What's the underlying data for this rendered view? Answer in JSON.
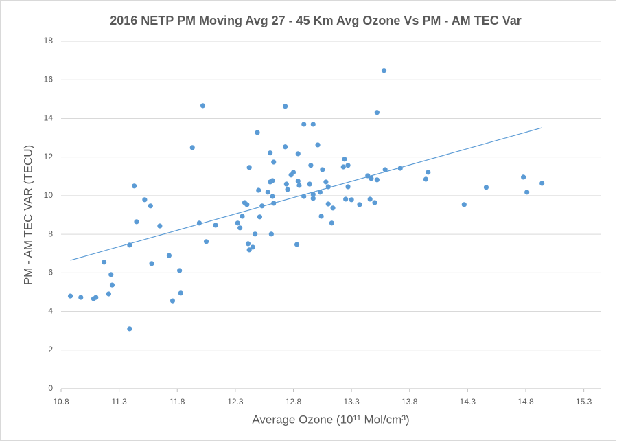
{
  "chart_data": {
    "type": "scatter",
    "title": "2016 NETP PM Moving Avg 27 - 45 Km Avg Ozone Vs PM - AM TEC Var",
    "x_label": "Average Ozone (10¹¹ Mol/cm³)",
    "y_label": "PM - AM TEC VAR (TECU)",
    "xlim": [
      10.8,
      15.45
    ],
    "ylim": [
      0,
      18
    ],
    "xticks": [
      10.8,
      11.3,
      11.8,
      12.3,
      12.8,
      13.3,
      13.8,
      14.3,
      14.8,
      15.3
    ],
    "yticks": [
      0,
      2,
      4,
      6,
      8,
      10,
      12,
      14,
      16,
      18
    ],
    "grid": true,
    "series": [
      {
        "color": "#5b9bd5",
        "x": [
          10.88,
          10.97,
          11.08,
          11.1,
          11.17,
          11.21,
          11.23,
          11.24,
          11.39,
          11.39,
          11.43,
          11.45,
          11.52,
          11.57,
          11.58,
          11.65,
          11.73,
          11.76,
          11.82,
          11.83,
          11.93,
          11.99,
          12.02,
          12.05,
          12.13,
          12.32,
          12.34,
          12.36,
          12.38,
          12.4,
          12.41,
          12.42,
          12.42,
          12.45,
          12.47,
          12.49,
          12.5,
          12.51,
          12.53,
          12.58,
          12.6,
          12.6,
          12.61,
          12.62,
          12.62,
          12.63,
          12.63,
          12.73,
          12.73,
          12.74,
          12.75,
          12.78,
          12.8,
          12.83,
          12.84,
          12.84,
          12.85,
          12.89,
          12.89,
          12.94,
          12.95,
          12.97,
          12.97,
          12.97,
          13.01,
          13.03,
          13.04,
          13.05,
          13.08,
          13.1,
          13.1,
          13.13,
          13.14,
          13.23,
          13.24,
          13.25,
          13.27,
          13.27,
          13.3,
          13.37,
          13.44,
          13.46,
          13.47,
          13.5,
          13.52,
          13.52,
          13.58,
          13.59,
          13.72,
          13.94,
          13.96,
          14.27,
          14.46,
          14.78,
          14.81,
          14.94
        ],
        "values": [
          4.8,
          4.73,
          4.66,
          4.73,
          6.55,
          4.91,
          5.91,
          5.37,
          7.44,
          3.1,
          10.5,
          8.65,
          9.79,
          9.47,
          6.48,
          8.43,
          6.9,
          4.55,
          6.12,
          4.95,
          12.49,
          8.58,
          14.66,
          7.62,
          8.47,
          8.58,
          8.33,
          8.93,
          9.64,
          9.54,
          7.51,
          7.19,
          11.46,
          7.33,
          8.01,
          13.27,
          10.28,
          8.9,
          9.47,
          10.18,
          12.21,
          10.71,
          8.01,
          10.78,
          9.96,
          11.74,
          9.61,
          14.63,
          12.53,
          10.6,
          10.32,
          11.07,
          11.21,
          7.47,
          12.17,
          10.75,
          10.53,
          13.7,
          9.96,
          10.6,
          11.57,
          13.7,
          10.07,
          9.86,
          12.63,
          10.18,
          8.93,
          11.35,
          10.71,
          10.46,
          9.57,
          8.58,
          9.36,
          11.49,
          11.89,
          9.82,
          11.57,
          10.46,
          9.79,
          9.54,
          11.03,
          9.82,
          10.89,
          9.64,
          10.82,
          14.31,
          16.48,
          11.35,
          11.42,
          10.85,
          11.21,
          9.54,
          10.43,
          10.96,
          10.18,
          10.64
        ]
      }
    ],
    "trendline": {
      "color": "#5b9bd5",
      "x": [
        10.88,
        14.94
      ],
      "values": [
        6.65,
        13.52
      ]
    }
  }
}
